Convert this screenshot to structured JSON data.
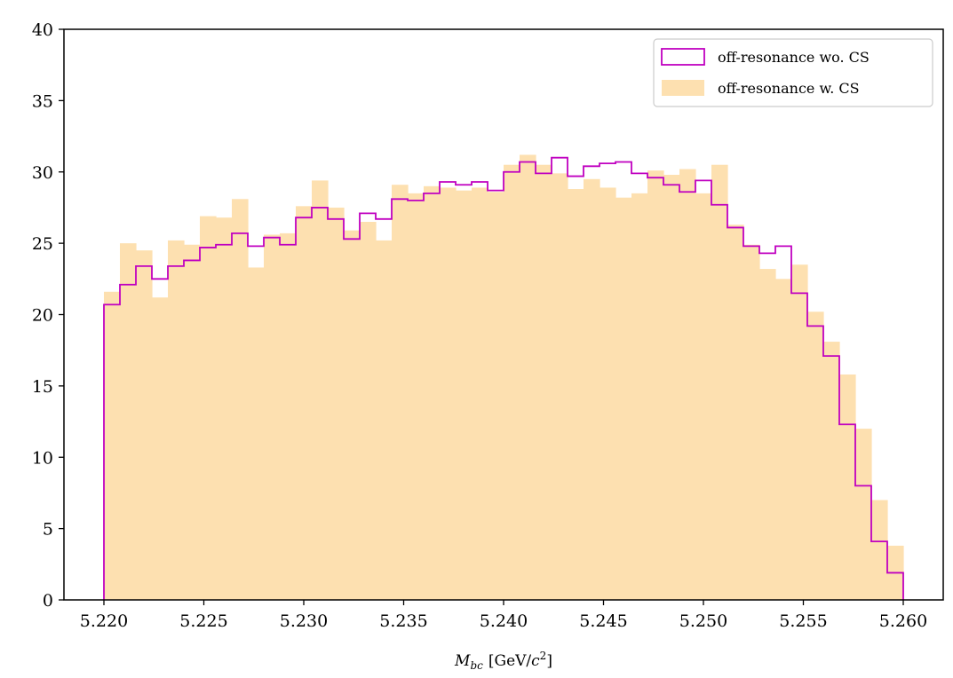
{
  "chart_data": {
    "type": "histogram",
    "xlabel_var": "M",
    "xlabel_sub": "bc",
    "xlabel_units_open": "[GeV/",
    "xlabel_units_c": "c",
    "xlabel_units_exp": "2",
    "xlabel_units_close": "]",
    "ylabel": "",
    "title": "",
    "xlim": [
      5.218,
      5.262
    ],
    "ylim": [
      0,
      40
    ],
    "xticks": [
      5.22,
      5.225,
      5.23,
      5.235,
      5.24,
      5.245,
      5.25,
      5.255,
      5.26
    ],
    "xtick_labels": [
      "5.220",
      "5.225",
      "5.230",
      "5.235",
      "5.240",
      "5.245",
      "5.250",
      "5.255",
      "5.260"
    ],
    "yticks": [
      0,
      5,
      10,
      15,
      20,
      25,
      30,
      35,
      40
    ],
    "ytick_labels": [
      "0",
      "5",
      "10",
      "15",
      "20",
      "25",
      "30",
      "35",
      "40"
    ],
    "bin_start": 5.22,
    "bin_end": 5.26,
    "grid": false,
    "legend_position": "top-right",
    "series": [
      {
        "name": "off-resonance wo. CS",
        "style": "step",
        "color": "#c000c0",
        "values": [
          20.7,
          22.1,
          23.4,
          22.5,
          23.4,
          23.8,
          24.7,
          24.9,
          25.7,
          24.8,
          25.4,
          24.9,
          26.8,
          27.5,
          26.7,
          25.3,
          27.1,
          26.7,
          28.1,
          28.0,
          28.5,
          29.3,
          29.1,
          29.3,
          28.7,
          30.0,
          30.7,
          29.9,
          31.0,
          29.7,
          30.4,
          30.6,
          30.7,
          29.9,
          29.6,
          29.1,
          28.6,
          29.4,
          27.7,
          26.1,
          24.8,
          24.3,
          24.8,
          21.5,
          19.2,
          17.1,
          12.3,
          8.0,
          4.1,
          1.9
        ]
      },
      {
        "name": "off-resonance w. CS",
        "style": "filled",
        "color": "#fde0b0",
        "values": [
          21.6,
          25.0,
          24.5,
          21.2,
          25.2,
          24.9,
          26.9,
          26.8,
          28.1,
          23.3,
          25.6,
          25.7,
          27.6,
          29.4,
          27.5,
          25.9,
          26.5,
          25.2,
          29.1,
          28.5,
          29.0,
          28.9,
          28.7,
          28.9,
          28.6,
          30.5,
          31.2,
          30.5,
          29.9,
          28.8,
          29.5,
          28.9,
          28.2,
          28.5,
          30.1,
          29.8,
          30.2,
          28.5,
          30.5,
          26.3,
          24.9,
          23.2,
          22.5,
          23.5,
          20.2,
          18.1,
          15.8,
          12.0,
          7.0,
          3.8
        ]
      }
    ]
  }
}
